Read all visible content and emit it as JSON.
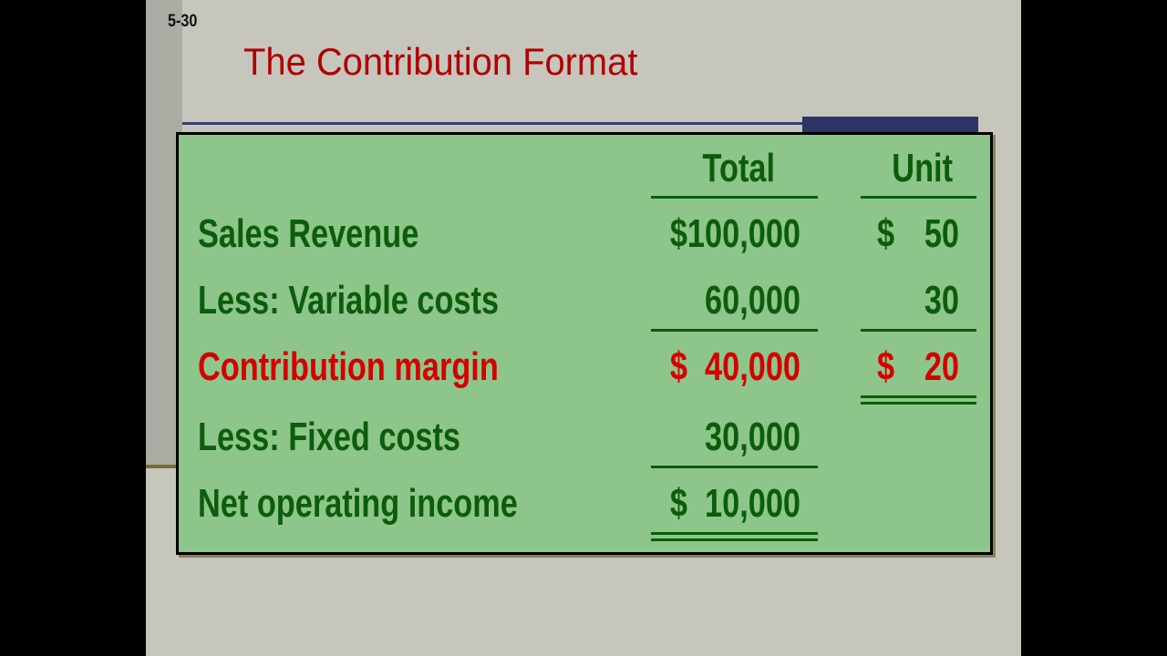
{
  "slide_number": "5-30",
  "title": "The Contribution Format",
  "headers": {
    "total": "Total",
    "unit": "Unit"
  },
  "rows": [
    {
      "label": "Sales Revenue",
      "total": "$100,000",
      "unit_sign": "$",
      "unit": "50"
    },
    {
      "label": "Less:  Variable costs",
      "total": "60,000",
      "unit_sign": "",
      "unit": "30"
    },
    {
      "label": "Contribution margin",
      "total": "$  40,000",
      "unit_sign": "$",
      "unit": "20"
    },
    {
      "label": "Less:  Fixed costs",
      "total": "30,000",
      "unit_sign": "",
      "unit": ""
    },
    {
      "label": "Net operating income",
      "total": "$  10,000",
      "unit_sign": "",
      "unit": ""
    }
  ],
  "colors": {
    "box": "#8ec58a",
    "text": "#0b5d0b",
    "highlight": "#d40000",
    "title": "#b00000"
  }
}
